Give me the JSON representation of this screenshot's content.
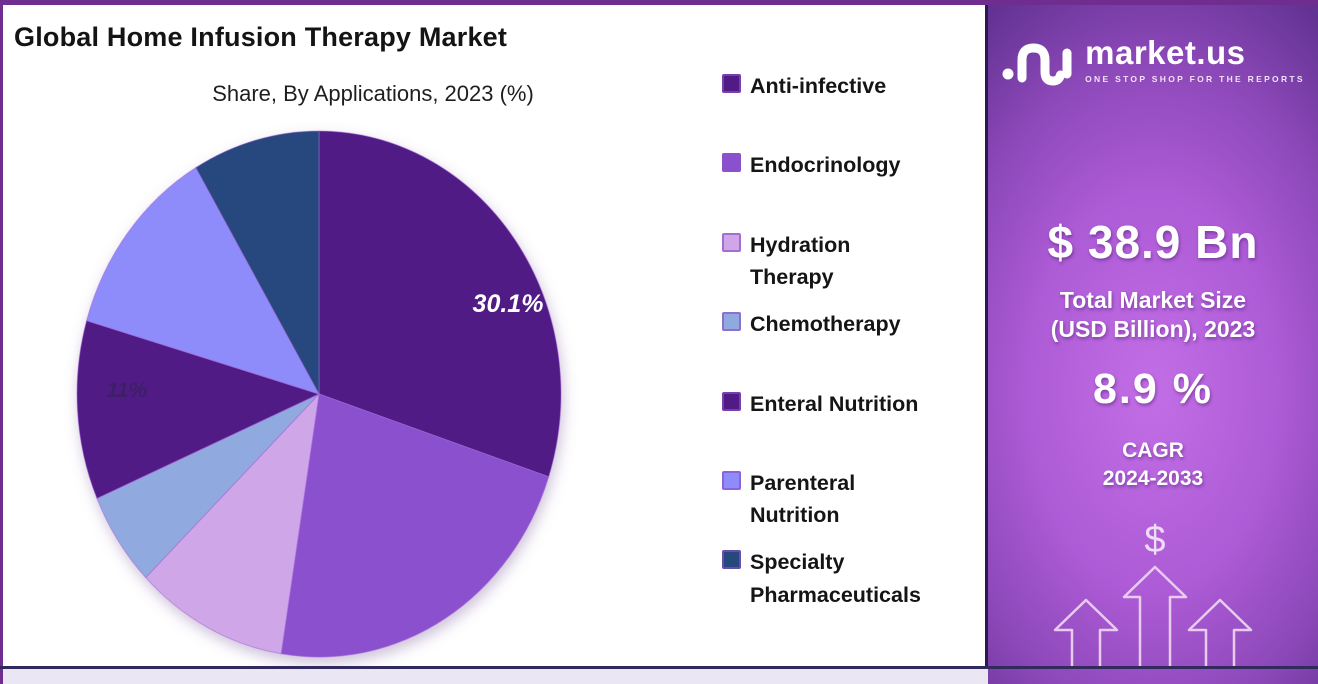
{
  "chart_data": {
    "type": "pie",
    "title": "Global Home Infusion Therapy Market",
    "subtitle": "Share, By Applications, 2023 (%)",
    "categories": [
      "Anti-infective",
      "Endocrinology",
      "Hydration Therapy",
      "Chemotherapy",
      "Enteral Nutrition",
      "Parenteral Nutrition",
      "Specialty Pharmaceuticals"
    ],
    "values": [
      30.1,
      22.4,
      10.2,
      5.8,
      11,
      12,
      8.5
    ],
    "colors": [
      "#511b86",
      "#8b50ce",
      "#cfa6e8",
      "#90a9de",
      "#511b86",
      "#8e8bfb",
      "#27477f"
    ],
    "start_angle_deg": 0,
    "direction": "clockwise",
    "legend_position": "right",
    "slice_labels": [
      {
        "index": 0,
        "text": "30.1%",
        "fx": 0.851,
        "fy": 0.357,
        "color": "#ffffff",
        "opacity": 1,
        "size": 25
      },
      {
        "index": 4,
        "text": "11%",
        "fx": 0.132,
        "fy": 0.509,
        "color": "#2b2346",
        "opacity": 0.5,
        "size": 21
      }
    ],
    "legend_lines": [
      [
        "Anti-infective"
      ],
      [
        "Endocrinology"
      ],
      [
        "Hydration",
        "Therapy"
      ],
      [
        "Chemotherapy"
      ],
      [
        "Enteral Nutrition"
      ],
      [
        "Parenteral",
        "Nutrition"
      ],
      [
        "Specialty",
        "Pharmaceuticals"
      ]
    ]
  },
  "panel": {
    "brand_name": "market.us",
    "brand_tagline": "ONE STOP SHOP FOR THE REPORTS",
    "market_size_value": "$ 38.9 Bn",
    "market_size_label_line1": "Total Market Size",
    "market_size_label_line2": "(USD Billion), 2023",
    "cagr_value": "8.9 %",
    "cagr_label_line1": "CAGR",
    "cagr_label_line2": "2024-2033",
    "growth_symbol": "$",
    "accent_colors": {
      "panel_gradient_center": "#c26ee6",
      "panel_gradient_edge": "#5f3190",
      "arrow_outline": "#efd9f3"
    }
  }
}
